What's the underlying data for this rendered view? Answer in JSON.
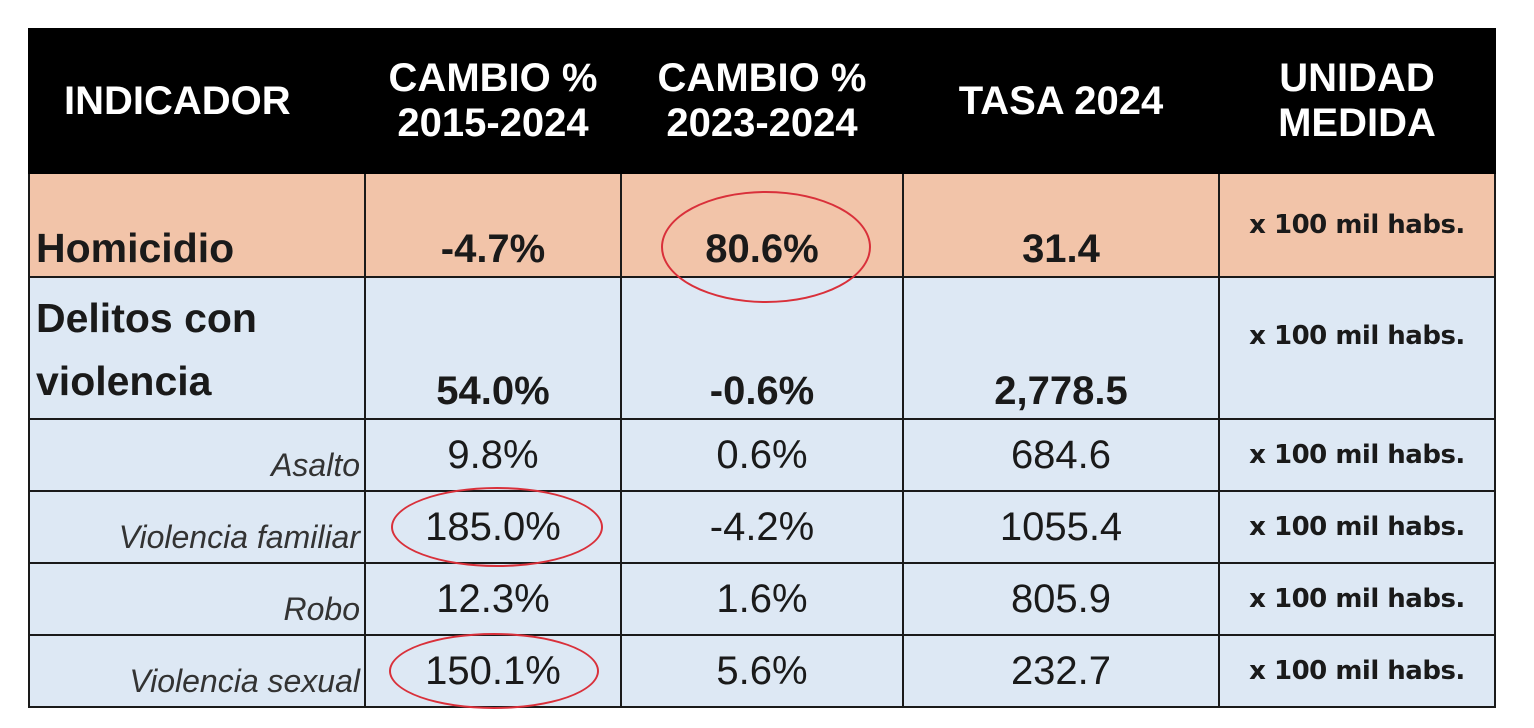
{
  "table": {
    "headers": [
      "INDICADOR",
      "CAMBIO %\n2015-2024",
      "CAMBIO %\n2023-2024",
      "TASA 2024",
      "UNIDAD\nMEDIDA"
    ],
    "rows": [
      {
        "indicador": "Homicidio",
        "cambio_2015_2024": "-4.7%",
        "cambio_2023_2024": "80.6%",
        "tasa_2024": "31.4",
        "unidad": "x 100 mil habs."
      },
      {
        "indicador": "Delitos con\nviolencia",
        "cambio_2015_2024": "54.0%",
        "cambio_2023_2024": "-0.6%",
        "tasa_2024": "2,778.5",
        "unidad": "x 100 mil habs."
      },
      {
        "indicador": "Asalto",
        "cambio_2015_2024": "9.8%",
        "cambio_2023_2024": "0.6%",
        "tasa_2024": "684.6",
        "unidad": "x 100 mil habs."
      },
      {
        "indicador": "Violencia familiar",
        "cambio_2015_2024": "185.0%",
        "cambio_2023_2024": "-4.2%",
        "tasa_2024": "1055.4",
        "unidad": "x 100 mil habs."
      },
      {
        "indicador": "Robo",
        "cambio_2015_2024": "12.3%",
        "cambio_2023_2024": "1.6%",
        "tasa_2024": "805.9",
        "unidad": "x 100 mil habs."
      },
      {
        "indicador": "Violencia sexual",
        "cambio_2015_2024": "150.1%",
        "cambio_2023_2024": "5.6%",
        "tasa_2024": "232.7",
        "unidad": "x 100 mil habs."
      }
    ]
  },
  "colors": {
    "header_bg": "#000000",
    "homicidio_bg": "#f2c4a9",
    "row_bg": "#dde8f4",
    "highlight_circle": "#d9303a"
  }
}
